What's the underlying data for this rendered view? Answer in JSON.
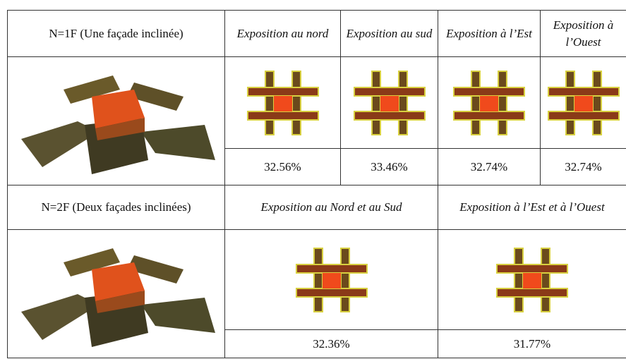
{
  "table": {
    "rows": [
      {
        "label": "N=1F (Une façade inclinée)",
        "headers": [
          "Exposition au nord",
          "Exposition au sud",
          "Exposition à l’Est",
          "Exposition à l’Ouest"
        ],
        "values": [
          "32.56%",
          "33.46%",
          "32.74%",
          "32.74%"
        ]
      },
      {
        "label": "N=2F (Deux façades inclinées)",
        "headers": [
          "Exposition au Nord et au Sud",
          "Exposition à l’Est et à l’Ouest"
        ],
        "values": [
          "32.36%",
          "31.77%"
        ]
      }
    ]
  }
}
